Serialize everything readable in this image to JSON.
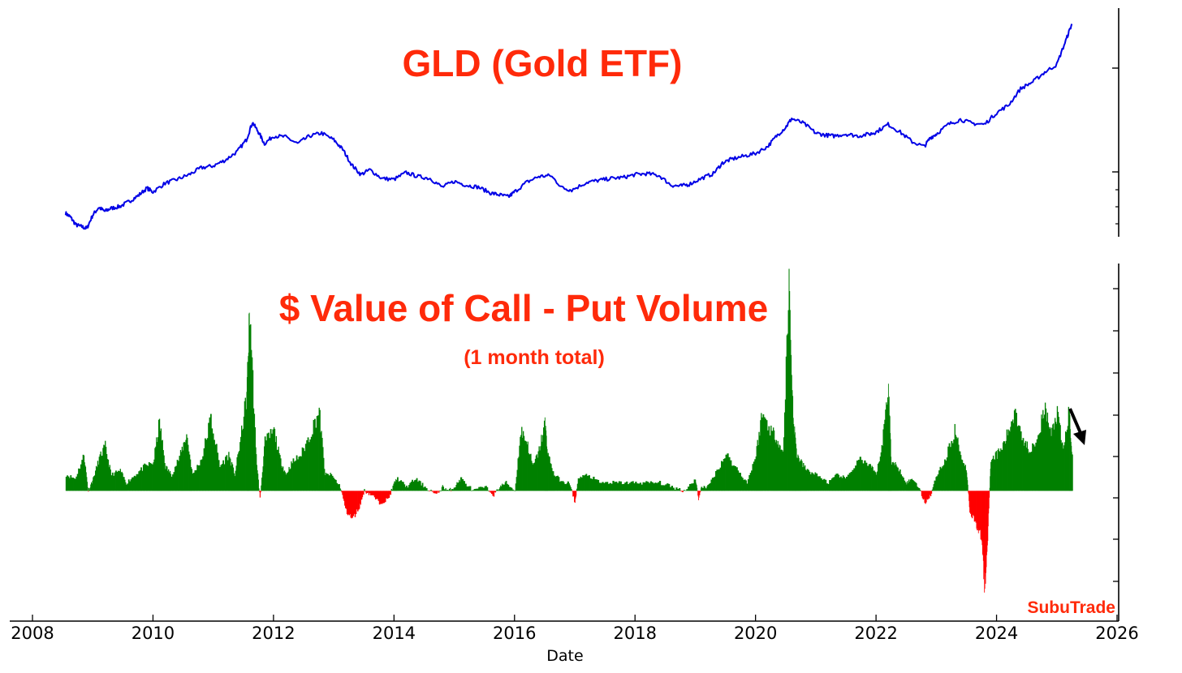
{
  "brand": "SubuTrade",
  "colors": {
    "price_line": "#0000e6",
    "positive": "#008000",
    "negative": "#ff0000",
    "title": "#ff2a0a",
    "annotation_arrow": "#000000"
  },
  "chart_data": [
    {
      "type": "line",
      "title": "GLD (Gold ETF)",
      "xlabel": "",
      "ylabel": "",
      "xlim": [
        2008,
        2026
      ],
      "y_axis": "right, tick labels not shown",
      "ylim": [
        70,
        290
      ],
      "series": [
        {
          "x": [
            2008.55,
            2008.63,
            2008.72,
            2008.82,
            2008.9,
            2009.0,
            2009.1,
            2009.2,
            2009.3,
            2009.45,
            2009.6,
            2009.75,
            2009.9,
            2010.0,
            2010.2,
            2010.4,
            2010.6,
            2010.8,
            2011.0,
            2011.2,
            2011.4,
            2011.55,
            2011.65,
            2011.75,
            2011.85,
            2012.0,
            2012.2,
            2012.4,
            2012.6,
            2012.8,
            2013.0,
            2013.15,
            2013.3,
            2013.45,
            2013.6,
            2013.8,
            2014.0,
            2014.2,
            2014.4,
            2014.6,
            2014.8,
            2015.0,
            2015.2,
            2015.4,
            2015.6,
            2015.75,
            2015.9,
            2016.0,
            2016.2,
            2016.4,
            2016.6,
            2016.8,
            2016.95,
            2017.2,
            2017.4,
            2017.6,
            2017.8,
            2018.0,
            2018.2,
            2018.4,
            2018.6,
            2018.75,
            2018.9,
            2019.1,
            2019.3,
            2019.45,
            2019.6,
            2019.8,
            2020.0,
            2020.2,
            2020.35,
            2020.5,
            2020.6,
            2020.8,
            2021.0,
            2021.15,
            2021.3,
            2021.5,
            2021.7,
            2021.9,
            2022.0,
            2022.2,
            2022.4,
            2022.6,
            2022.8,
            2022.9,
            2023.0,
            2023.2,
            2023.4,
            2023.6,
            2023.8,
            2024.0,
            2024.2,
            2024.4,
            2024.6,
            2024.8,
            2025.0,
            2025.15,
            2025.25
          ],
          "y": [
            86,
            82,
            74,
            72,
            70,
            84,
            92,
            88,
            91,
            93,
            98,
            104,
            112,
            108,
            117,
            121,
            126,
            133,
            135,
            141,
            150,
            162,
            180,
            170,
            158,
            166,
            165,
            158,
            166,
            169,
            162,
            152,
            136,
            126,
            131,
            122,
            121,
            128,
            124,
            122,
            113,
            119,
            115,
            113,
            107,
            105,
            103,
            108,
            118,
            124,
            125,
            112,
            110,
            118,
            120,
            122,
            123,
            126,
            127,
            125,
            115,
            114,
            116,
            122,
            127,
            138,
            142,
            145,
            148,
            155,
            166,
            175,
            184,
            179,
            169,
            167,
            166,
            168,
            166,
            168,
            170,
            178,
            170,
            160,
            155,
            164,
            168,
            178,
            183,
            179,
            178,
            190,
            198,
            215,
            222,
            232,
            240,
            265,
            282
          ]
        }
      ]
    },
    {
      "type": "area",
      "title": "$ Value of Call - Put Volume",
      "subtitle": "(1 month total)",
      "xlabel": "Date",
      "ylabel": "",
      "xlim": [
        2008,
        2026
      ],
      "x_ticks": [
        "2008",
        "2010",
        "2012",
        "2014",
        "2016",
        "2018",
        "2020",
        "2022",
        "2024",
        "2026"
      ],
      "y_axis": "right, tick labels not shown",
      "ylim": [
        -28,
        52
      ],
      "series": [
        {
          "x": [
            2008.55,
            2008.7,
            2008.85,
            2008.92,
            2009.0,
            2009.1,
            2009.2,
            2009.3,
            2009.45,
            2009.55,
            2009.7,
            2009.85,
            2010.0,
            2010.1,
            2010.2,
            2010.3,
            2010.45,
            2010.55,
            2010.65,
            2010.8,
            2010.95,
            2011.1,
            2011.25,
            2011.35,
            2011.45,
            2011.55,
            2011.6,
            2011.7,
            2011.77,
            2011.85,
            2012.0,
            2012.1,
            2012.2,
            2012.3,
            2012.45,
            2012.6,
            2012.75,
            2012.85,
            2012.95,
            2013.1,
            2013.2,
            2013.3,
            2013.42,
            2013.5,
            2013.62,
            2013.75,
            2013.9,
            2014.0,
            2014.05,
            2014.2,
            2014.35,
            2014.5,
            2014.7,
            2014.8,
            2014.9,
            2015.0,
            2015.1,
            2015.3,
            2015.5,
            2015.65,
            2015.75,
            2015.85,
            2016.0,
            2016.1,
            2016.2,
            2016.3,
            2016.4,
            2016.5,
            2016.55,
            2016.65,
            2016.8,
            2016.9,
            2017.0,
            2017.05,
            2017.2,
            2017.4,
            2017.6,
            2017.8,
            2018.0,
            2018.2,
            2018.4,
            2018.6,
            2018.8,
            2019.0,
            2019.05,
            2019.1,
            2019.2,
            2019.35,
            2019.5,
            2019.7,
            2019.85,
            2020.0,
            2020.1,
            2020.25,
            2020.35,
            2020.45,
            2020.55,
            2020.62,
            2020.68,
            2020.75,
            2020.85,
            2021.0,
            2021.2,
            2021.35,
            2021.5,
            2021.7,
            2021.9,
            2022.0,
            2022.1,
            2022.2,
            2022.25,
            2022.35,
            2022.5,
            2022.6,
            2022.7,
            2022.8,
            2022.9,
            2023.0,
            2023.15,
            2023.3,
            2023.4,
            2023.5,
            2023.55,
            2023.65,
            2023.7,
            2023.75,
            2023.8,
            2023.85,
            2023.9,
            2024.0,
            2024.1,
            2024.2,
            2024.3,
            2024.45,
            2024.55,
            2024.7,
            2024.8,
            2024.9,
            2025.0,
            2025.1,
            2025.2,
            2025.25
          ],
          "y": [
            4,
            3,
            9,
            0,
            3,
            8,
            11,
            4,
            5,
            2,
            4,
            6,
            7,
            17,
            6,
            4,
            9,
            14,
            4,
            8,
            18,
            6,
            9,
            4,
            13,
            24,
            45,
            10,
            -2,
            12,
            15,
            8,
            4,
            7,
            9,
            14,
            20,
            4,
            4,
            1,
            -5,
            -7,
            -4,
            0,
            -1,
            -3,
            -2,
            2,
            3,
            1,
            3,
            1,
            -1,
            1,
            0,
            1,
            3,
            0,
            1,
            -1,
            1,
            2,
            0,
            15,
            12,
            6,
            10,
            17,
            9,
            4,
            2,
            2,
            -3,
            3,
            4,
            2,
            2,
            2,
            2,
            2,
            2,
            1,
            0,
            3,
            -2,
            1,
            1,
            5,
            9,
            5,
            2,
            9,
            19,
            15,
            13,
            9,
            52,
            18,
            9,
            7,
            5,
            4,
            2,
            4,
            3,
            8,
            6,
            4,
            12,
            27,
            7,
            6,
            2,
            3,
            1,
            -3,
            -1,
            4,
            8,
            15,
            9,
            5,
            -5,
            -8,
            -10,
            -12,
            -25,
            -11,
            8,
            9,
            11,
            15,
            20,
            12,
            10,
            15,
            20,
            14,
            19,
            10,
            20,
            9
          ]
        }
      ]
    }
  ]
}
